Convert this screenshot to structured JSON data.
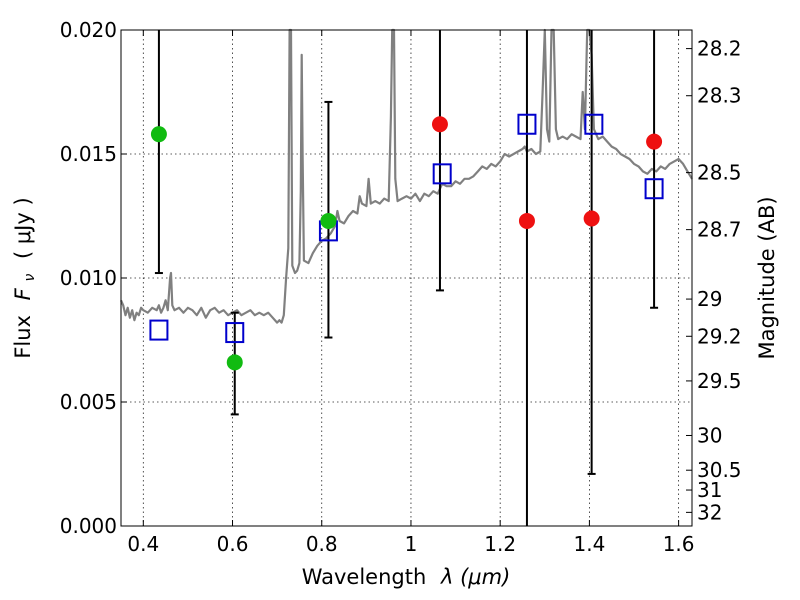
{
  "chart_data": {
    "type": "scatter",
    "xlabel_main": "Wavelength",
    "xlabel_math": "λ (μm)",
    "ylabel_main": "Flux",
    "ylabel_math": "F",
    "ylabel_sub": "ν",
    "ylabel_unit": "( μJy )",
    "y2label": "Magnitude (AB)",
    "xlim": [
      0.35,
      1.63
    ],
    "ylim": [
      0.0,
      0.02
    ],
    "grid": true,
    "x_ticks": [
      {
        "value": 0.4,
        "label": "0.4"
      },
      {
        "value": 0.6,
        "label": "0.6"
      },
      {
        "value": 0.8,
        "label": "0.8"
      },
      {
        "value": 1.0,
        "label": "1"
      },
      {
        "value": 1.2,
        "label": "1.2"
      },
      {
        "value": 1.4,
        "label": "1.4"
      },
      {
        "value": 1.6,
        "label": "1.6"
      }
    ],
    "y_ticks": [
      {
        "value": 0.0,
        "label": "0.000"
      },
      {
        "value": 0.005,
        "label": "0.005"
      },
      {
        "value": 0.01,
        "label": "0.010"
      },
      {
        "value": 0.015,
        "label": "0.015"
      },
      {
        "value": 0.02,
        "label": "0.020"
      }
    ],
    "y2_ticks": [
      {
        "flux": 0.01925,
        "label": "28.2"
      },
      {
        "flux": 0.01735,
        "label": "28.3"
      },
      {
        "flux": 0.01425,
        "label": "28.5"
      },
      {
        "flux": 0.01195,
        "label": "28.7"
      },
      {
        "flux": 0.00915,
        "label": "29"
      },
      {
        "flux": 0.00765,
        "label": "29.2"
      },
      {
        "flux": 0.00585,
        "label": "29.5"
      },
      {
        "flux": 0.00365,
        "label": "30"
      },
      {
        "flux": 0.00225,
        "label": "30.5"
      },
      {
        "flux": 0.00145,
        "label": "31"
      },
      {
        "flux": 0.00055,
        "label": "32"
      }
    ],
    "spectrum": {
      "color": "#808080",
      "points": [
        [
          0.35,
          0.0091
        ],
        [
          0.355,
          0.0089
        ],
        [
          0.36,
          0.0085
        ],
        [
          0.365,
          0.0088
        ],
        [
          0.37,
          0.0084
        ],
        [
          0.375,
          0.0087
        ],
        [
          0.38,
          0.0083
        ],
        [
          0.385,
          0.0086
        ],
        [
          0.39,
          0.0085
        ],
        [
          0.395,
          0.0088
        ],
        [
          0.4,
          0.0087
        ],
        [
          0.41,
          0.0086
        ],
        [
          0.42,
          0.0088
        ],
        [
          0.43,
          0.0087
        ],
        [
          0.435,
          0.0089
        ],
        [
          0.44,
          0.0086
        ],
        [
          0.445,
          0.0088
        ],
        [
          0.45,
          0.0091
        ],
        [
          0.455,
          0.0087
        ],
        [
          0.46,
          0.01
        ],
        [
          0.462,
          0.0102
        ],
        [
          0.465,
          0.0089
        ],
        [
          0.47,
          0.0087
        ],
        [
          0.48,
          0.0088
        ],
        [
          0.49,
          0.0086
        ],
        [
          0.5,
          0.0088
        ],
        [
          0.51,
          0.0087
        ],
        [
          0.52,
          0.0085
        ],
        [
          0.53,
          0.0088
        ],
        [
          0.54,
          0.0084
        ],
        [
          0.55,
          0.0087
        ],
        [
          0.56,
          0.0088
        ],
        [
          0.57,
          0.0086
        ],
        [
          0.58,
          0.0087
        ],
        [
          0.59,
          0.0085
        ],
        [
          0.6,
          0.0086
        ],
        [
          0.61,
          0.0087
        ],
        [
          0.62,
          0.0085
        ],
        [
          0.63,
          0.0086
        ],
        [
          0.64,
          0.0087
        ],
        [
          0.65,
          0.0085
        ],
        [
          0.66,
          0.0086
        ],
        [
          0.67,
          0.0085
        ],
        [
          0.68,
          0.0086
        ],
        [
          0.69,
          0.0084
        ],
        [
          0.7,
          0.0082
        ],
        [
          0.705,
          0.0083
        ],
        [
          0.71,
          0.0082
        ],
        [
          0.715,
          0.0085
        ],
        [
          0.72,
          0.01
        ],
        [
          0.725,
          0.0112
        ],
        [
          0.728,
          0.02
        ],
        [
          0.731,
          0.02
        ],
        [
          0.734,
          0.0105
        ],
        [
          0.74,
          0.0102
        ],
        [
          0.745,
          0.0103
        ],
        [
          0.75,
          0.0106
        ],
        [
          0.753,
          0.0135
        ],
        [
          0.755,
          0.019
        ],
        [
          0.757,
          0.015
        ],
        [
          0.76,
          0.0107
        ],
        [
          0.77,
          0.0106
        ],
        [
          0.78,
          0.011
        ],
        [
          0.79,
          0.0113
        ],
        [
          0.8,
          0.0115
        ],
        [
          0.81,
          0.0116
        ],
        [
          0.82,
          0.0118
        ],
        [
          0.83,
          0.0121
        ],
        [
          0.835,
          0.0127
        ],
        [
          0.84,
          0.0123
        ],
        [
          0.85,
          0.0122
        ],
        [
          0.86,
          0.0125
        ],
        [
          0.87,
          0.0127
        ],
        [
          0.88,
          0.0126
        ],
        [
          0.885,
          0.0133
        ],
        [
          0.89,
          0.013
        ],
        [
          0.9,
          0.0129
        ],
        [
          0.905,
          0.014
        ],
        [
          0.91,
          0.013
        ],
        [
          0.92,
          0.0131
        ],
        [
          0.93,
          0.013
        ],
        [
          0.94,
          0.0132
        ],
        [
          0.95,
          0.0131
        ],
        [
          0.955,
          0.0165
        ],
        [
          0.958,
          0.02
        ],
        [
          0.962,
          0.02
        ],
        [
          0.965,
          0.014
        ],
        [
          0.97,
          0.0131
        ],
        [
          0.98,
          0.0132
        ],
        [
          0.99,
          0.0133
        ],
        [
          1.0,
          0.0132
        ],
        [
          1.01,
          0.0134
        ],
        [
          1.02,
          0.0131
        ],
        [
          1.03,
          0.0134
        ],
        [
          1.04,
          0.0133
        ],
        [
          1.05,
          0.0135
        ],
        [
          1.06,
          0.0134
        ],
        [
          1.07,
          0.0138
        ],
        [
          1.08,
          0.0137
        ],
        [
          1.09,
          0.0137
        ],
        [
          1.1,
          0.0139
        ],
        [
          1.11,
          0.0138
        ],
        [
          1.12,
          0.014
        ],
        [
          1.13,
          0.014
        ],
        [
          1.14,
          0.0141
        ],
        [
          1.15,
          0.0143
        ],
        [
          1.16,
          0.0145
        ],
        [
          1.17,
          0.0144
        ],
        [
          1.18,
          0.0146
        ],
        [
          1.19,
          0.0145
        ],
        [
          1.2,
          0.0147
        ],
        [
          1.21,
          0.015
        ],
        [
          1.22,
          0.0149
        ],
        [
          1.23,
          0.015
        ],
        [
          1.24,
          0.0151
        ],
        [
          1.25,
          0.0152
        ],
        [
          1.255,
          0.0153
        ],
        [
          1.26,
          0.0151
        ],
        [
          1.27,
          0.0152
        ],
        [
          1.28,
          0.015
        ],
        [
          1.29,
          0.0151
        ],
        [
          1.295,
          0.0175
        ],
        [
          1.3,
          0.02
        ],
        [
          1.305,
          0.016
        ],
        [
          1.31,
          0.0155
        ],
        [
          1.315,
          0.02
        ],
        [
          1.32,
          0.02
        ],
        [
          1.325,
          0.016
        ],
        [
          1.33,
          0.0156
        ],
        [
          1.34,
          0.0157
        ],
        [
          1.35,
          0.0156
        ],
        [
          1.36,
          0.0158
        ],
        [
          1.37,
          0.0157
        ],
        [
          1.38,
          0.0156
        ],
        [
          1.385,
          0.0175
        ],
        [
          1.39,
          0.016
        ],
        [
          1.395,
          0.02
        ],
        [
          1.4,
          0.02
        ],
        [
          1.405,
          0.019
        ],
        [
          1.41,
          0.016
        ],
        [
          1.42,
          0.0156
        ],
        [
          1.43,
          0.0157
        ],
        [
          1.44,
          0.0155
        ],
        [
          1.45,
          0.0153
        ],
        [
          1.46,
          0.0152
        ],
        [
          1.47,
          0.015
        ],
        [
          1.48,
          0.0149
        ],
        [
          1.49,
          0.0148
        ],
        [
          1.5,
          0.0146
        ],
        [
          1.51,
          0.0145
        ],
        [
          1.52,
          0.0143
        ],
        [
          1.53,
          0.0142
        ],
        [
          1.54,
          0.0144
        ],
        [
          1.55,
          0.0143
        ],
        [
          1.56,
          0.0145
        ],
        [
          1.57,
          0.0144
        ],
        [
          1.58,
          0.0146
        ],
        [
          1.59,
          0.0147
        ],
        [
          1.6,
          0.0148
        ],
        [
          1.61,
          0.0146
        ],
        [
          1.62,
          0.0143
        ],
        [
          1.63,
          0.014
        ]
      ]
    },
    "model_points": {
      "marker": "open-square",
      "color": "#0000cc",
      "points": [
        {
          "x": 0.435,
          "y": 0.0079
        },
        {
          "x": 0.605,
          "y": 0.0078
        },
        {
          "x": 0.815,
          "y": 0.0119
        },
        {
          "x": 1.07,
          "y": 0.0142
        },
        {
          "x": 1.26,
          "y": 0.0162
        },
        {
          "x": 1.41,
          "y": 0.0162
        },
        {
          "x": 1.545,
          "y": 0.0136
        }
      ]
    },
    "observed_hst": {
      "marker": "filled-circle",
      "color": "#11bb11",
      "points": [
        {
          "x": 0.435,
          "y": 0.0158,
          "err_low": 0.0102,
          "err_high": 0.02
        },
        {
          "x": 0.605,
          "y": 0.0066,
          "err_low": 0.0045,
          "err_high": 0.0086
        },
        {
          "x": 0.815,
          "y": 0.0123,
          "err_low": 0.0076,
          "err_high": 0.0171
        }
      ]
    },
    "observed_ir": {
      "marker": "filled-circle",
      "color": "#ee1111",
      "points": [
        {
          "x": 1.065,
          "y": 0.0162,
          "err_low": 0.0095,
          "err_high": 0.02
        },
        {
          "x": 1.26,
          "y": 0.0123,
          "err_low": 0.0,
          "err_high": 0.02
        },
        {
          "x": 1.405,
          "y": 0.0124,
          "err_low": 0.0021,
          "err_high": 0.02
        },
        {
          "x": 1.545,
          "y": 0.0155,
          "err_low": 0.0088,
          "err_high": 0.02
        }
      ]
    }
  }
}
